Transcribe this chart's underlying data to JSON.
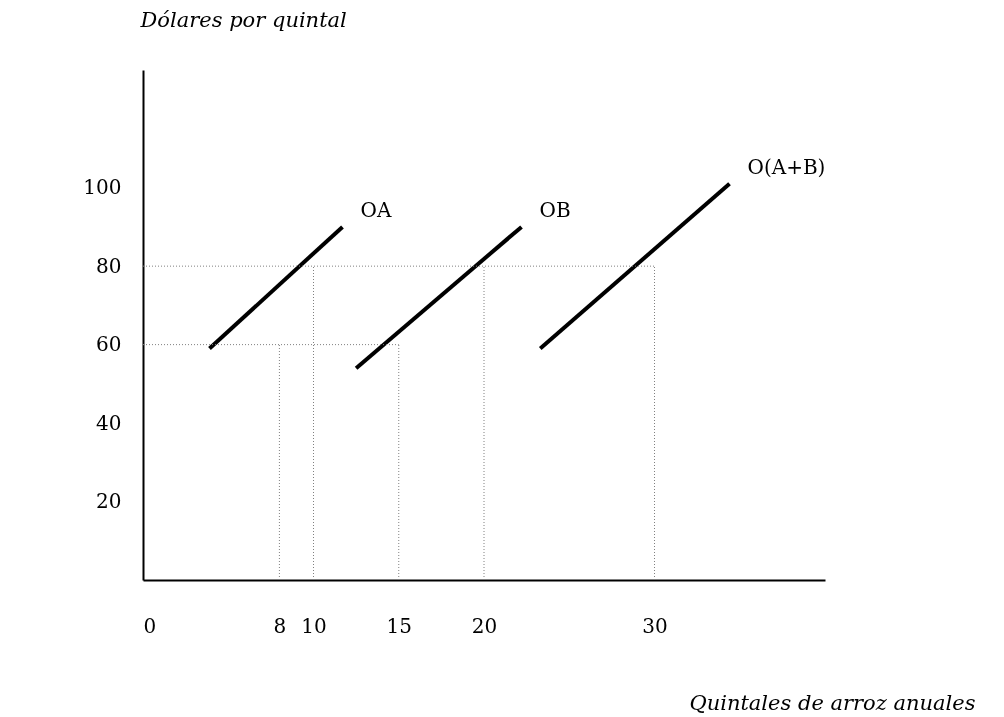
{
  "chart_data": {
    "type": "line",
    "xlabel": "Quintales de arroz anuales",
    "ylabel": "Dólares por quintal",
    "xlim": [
      0,
      40
    ],
    "xticks": [
      0,
      8,
      10,
      15,
      20,
      30
    ],
    "ylim": [
      0,
      130
    ],
    "yticks": [
      20,
      40,
      60,
      80,
      100
    ],
    "marker": "none",
    "series": [
      {
        "name": "OA",
        "color": "#000000",
        "x": [
          3.9,
          11.7
        ],
        "values": [
          59,
          90
        ]
      },
      {
        "name": "OB",
        "color": "#000000",
        "x": [
          12.5,
          22.2
        ],
        "values": [
          54,
          90
        ]
      },
      {
        "name": "O(A+B)",
        "color": "#000000",
        "x": [
          23.3,
          34.4
        ],
        "values": [
          59,
          101
        ]
      },
      {
        "color": "#808080",
        "line_style": "dotted",
        "x": [
          8,
          8
        ],
        "values": [
          0,
          60
        ]
      },
      {
        "color": "#808080",
        "line_style": "dotted",
        "x": [
          10,
          10
        ],
        "values": [
          0,
          80
        ]
      },
      {
        "color": "#808080",
        "line_style": "dotted",
        "x": [
          15,
          15
        ],
        "values": [
          0,
          60
        ]
      },
      {
        "color": "#808080",
        "line_style": "dotted",
        "x": [
          20,
          20
        ],
        "values": [
          0,
          80
        ]
      },
      {
        "color": "#808080",
        "line_style": "dotted",
        "x": [
          30,
          30
        ],
        "values": [
          0,
          80
        ]
      },
      {
        "color": "#808080",
        "line_style": "dotted",
        "x": [
          0,
          15
        ],
        "values": [
          60,
          60
        ]
      },
      {
        "color": "#808080",
        "line_style": "dotted",
        "x": [
          0,
          30
        ],
        "values": [
          80,
          80
        ]
      }
    ]
  }
}
